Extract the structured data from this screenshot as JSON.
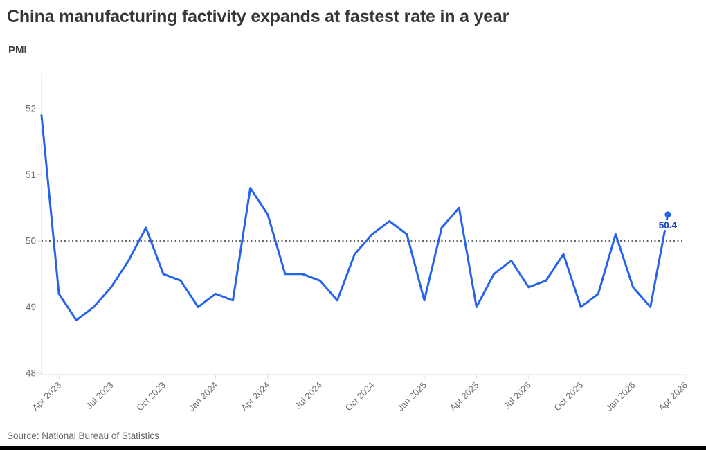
{
  "header": {
    "title": "China manufacturing factivity expands at fastest rate in a year",
    "unit_label": "PMI"
  },
  "chart_data": {
    "type": "line",
    "title": "China manufacturing factivity expands at fastest rate in a year",
    "ylabel": "PMI",
    "x": [
      "Mar 2023",
      "Apr 2023",
      "May 2023",
      "Jun 2023",
      "Jul 2023",
      "Aug 2023",
      "Sep 2023",
      "Oct 2023",
      "Nov 2023",
      "Dec 2023",
      "Jan 2024",
      "Feb 2024",
      "Mar 2024",
      "Apr 2024",
      "May 2024",
      "Jun 2024",
      "Jul 2024",
      "Aug 2024",
      "Sep 2024",
      "Oct 2024",
      "Nov 2024",
      "Dec 2024",
      "Jan 2025",
      "Feb 2025",
      "Mar 2025",
      "Apr 2025",
      "May 2025",
      "Jun 2025",
      "Jul 2025",
      "Aug 2025",
      "Sep 2025",
      "Oct 2025",
      "Nov 2025",
      "Dec 2025",
      "Jan 2026",
      "Feb 2026",
      "Mar 2026"
    ],
    "series": [
      {
        "name": "PMI",
        "values": [
          51.9,
          49.2,
          48.8,
          49.0,
          49.3,
          49.7,
          50.2,
          49.5,
          49.4,
          49.0,
          49.2,
          49.1,
          50.8,
          50.4,
          49.5,
          49.5,
          49.4,
          49.1,
          49.8,
          50.1,
          50.3,
          50.1,
          49.1,
          50.2,
          50.5,
          49.0,
          49.5,
          49.7,
          49.3,
          49.4,
          49.8,
          49.0,
          49.2,
          50.1,
          49.3,
          49.0,
          50.4
        ]
      }
    ],
    "x_tick_labels": [
      "Apr 2023",
      "Jul 2023",
      "Oct 2023",
      "Jan 2024",
      "Apr 2024",
      "Jul 2024",
      "Oct 2024",
      "Jan 2025",
      "Apr 2025",
      "Jul 2025",
      "Oct 2025",
      "Jan 2026",
      "Apr 2026"
    ],
    "y_ticks": [
      "52",
      "51",
      "50",
      "49",
      "48"
    ],
    "ylim": [
      48,
      52.55
    ],
    "reference_line": 50,
    "grid": "off",
    "legend": "none",
    "end_label": "50.4",
    "colors": {
      "line": "#2563eb",
      "end_label": "#1b46c7",
      "reference": "#4f4f4f",
      "axis": "#dedede",
      "tick": "#d9d9d9",
      "tick_text": "#6f6f6f"
    }
  },
  "footer": {
    "source": "Source: National Bureau of Statistics"
  }
}
